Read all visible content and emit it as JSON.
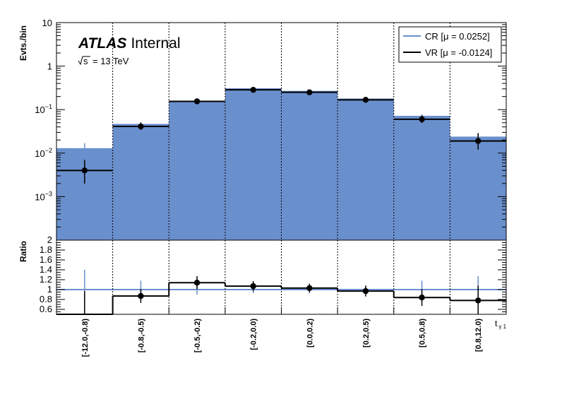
{
  "chart_data": {
    "type": "histogram",
    "labels": {
      "atlas": "ATLAS",
      "internal": "Internal",
      "energy": "= 13 TeV",
      "sqrt_s": "s",
      "x_title": "t",
      "x_title_sub": "γ 1",
      "y_title_top": "Evts./bin",
      "y_title_bottom": "Ratio"
    },
    "categories": [
      "[-12.0,-0.8)",
      "[-0.8,-0.5)",
      "[-0.5,-0.2)",
      "[-0.2,0.0)",
      "[0.0,0.2)",
      "[0.2,0.5)",
      "[0.5,0.8)",
      "[0.8,12.0)"
    ],
    "legend": [
      {
        "label": "CR [μ = 0.0252]",
        "color": "#6a8fcd"
      },
      {
        "label": "VR [μ = -0.0124]",
        "color": "#000000"
      }
    ],
    "top": {
      "y_scale": "log",
      "ylim": [
        0.0001,
        10
      ],
      "y_tick_labels": [
        {
          "v": 10,
          "base": "10",
          "exp": ""
        },
        {
          "v": 1,
          "base": "1",
          "exp": ""
        },
        {
          "v": 0.1,
          "base": "10",
          "exp": "−1"
        },
        {
          "v": 0.01,
          "base": "10",
          "exp": "−2"
        },
        {
          "v": 0.001,
          "base": "10",
          "exp": "−3"
        }
      ],
      "cr_values": [
        0.013,
        0.047,
        0.15,
        0.31,
        0.27,
        0.18,
        0.072,
        0.024
      ],
      "cr_err": [
        0.004,
        0.005,
        0.01,
        0.015,
        0.014,
        0.011,
        0.006,
        0.003
      ],
      "vr_values": [
        0.004,
        0.041,
        0.155,
        0.285,
        0.25,
        0.168,
        0.06,
        0.019
      ],
      "vr_err_low": [
        0.002,
        0.007,
        0.016,
        0.025,
        0.023,
        0.018,
        0.011,
        0.007
      ],
      "vr_err_high": [
        0.003,
        0.009,
        0.018,
        0.028,
        0.026,
        0.02,
        0.014,
        0.01
      ]
    },
    "bottom": {
      "ylim": [
        0.5,
        2.0
      ],
      "y_tick_labels": [
        "2",
        "1.8",
        "1.6",
        "1.4",
        "1.2",
        "1",
        "0.8",
        "0.6"
      ],
      "y_tick_values": [
        2.0,
        1.8,
        1.6,
        1.4,
        1.2,
        1.0,
        0.8,
        0.6
      ],
      "ratio": [
        0.47,
        0.87,
        1.14,
        1.07,
        1.03,
        0.97,
        0.84,
        0.78
      ],
      "ratio_err": [
        0.5,
        0.14,
        0.13,
        0.1,
        0.09,
        0.11,
        0.17,
        0.3
      ],
      "cr_ratio": [
        1.0,
        1.0,
        1.0,
        1.0,
        1.0,
        1.0,
        1.0,
        1.0
      ],
      "cr_ratio_err": [
        0.4,
        0.18,
        0.1,
        0.07,
        0.07,
        0.08,
        0.18,
        0.27
      ]
    }
  }
}
